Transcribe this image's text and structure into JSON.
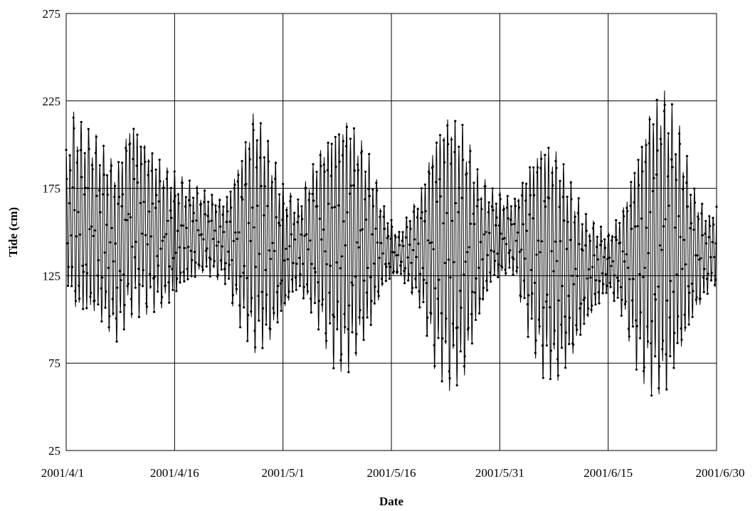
{
  "chart_data": {
    "type": "line",
    "title": "",
    "xlabel": "Date",
    "ylabel": "Tide (cm)",
    "ylim": [
      25,
      275
    ],
    "yticks": [
      25,
      75,
      125,
      175,
      225,
      275
    ],
    "xlim": [
      "2001-04-01",
      "2001-06-30"
    ],
    "xticks": [
      {
        "date": "2001-04-01",
        "label": "2001/4/1"
      },
      {
        "date": "2001-04-16",
        "label": "2001/4/16"
      },
      {
        "date": "2001-05-01",
        "label": "2001/5/1"
      },
      {
        "date": "2001-05-16",
        "label": "2001/5/16"
      },
      {
        "date": "2001-05-31",
        "label": "2001/5/31"
      },
      {
        "date": "2001-06-15",
        "label": "2001/6/15"
      },
      {
        "date": "2001-06-30",
        "label": "2001/6/30"
      }
    ],
    "grid": true,
    "legend": "none",
    "series": [
      {
        "sampling": "hourly",
        "color": "#000000",
        "marker": "dot",
        "x": [
          "2001-04-01",
          "2001-04-02",
          "2001-04-03",
          "2001-04-05",
          "2001-04-08",
          "2001-04-10",
          "2001-04-12",
          "2001-04-15",
          "2001-04-17",
          "2001-04-20",
          "2001-04-23",
          "2001-04-25",
          "2001-04-27",
          "2001-04-29",
          "2001-05-01",
          "2001-05-03",
          "2001-05-06",
          "2001-05-08",
          "2001-05-10",
          "2001-05-13",
          "2001-05-15",
          "2001-05-17",
          "2001-05-20",
          "2001-05-22",
          "2001-05-24",
          "2001-05-26",
          "2001-05-28",
          "2001-05-30",
          "2001-06-02",
          "2001-06-04",
          "2001-06-06",
          "2001-06-08",
          "2001-06-10",
          "2001-06-12",
          "2001-06-15",
          "2001-06-17",
          "2001-06-19",
          "2001-06-21",
          "2001-06-23",
          "2001-06-25",
          "2001-06-27",
          "2001-06-29",
          "2001-06-30"
        ],
        "daily_high": [
          198,
          220,
          214,
          208,
          190,
          220,
          205,
          188,
          182,
          175,
          170,
          195,
          225,
          205,
          178,
          168,
          200,
          215,
          222,
          195,
          165,
          150,
          175,
          210,
          225,
          215,
          185,
          175,
          170,
          192,
          208,
          200,
          180,
          160,
          150,
          165,
          200,
          230,
          235,
          210,
          175,
          160,
          170
        ],
        "daily_low": [
          120,
          102,
          98,
          99,
          85,
          100,
          102,
          105,
          115,
          125,
          120,
          95,
          78,
          82,
          100,
          115,
          92,
          72,
          68,
          90,
          118,
          125,
          105,
          70,
          58,
          62,
          95,
          120,
          125,
          88,
          65,
          62,
          75,
          95,
          115,
          100,
          70,
          55,
          52,
          75,
          100,
          115,
          118
        ]
      }
    ]
  }
}
